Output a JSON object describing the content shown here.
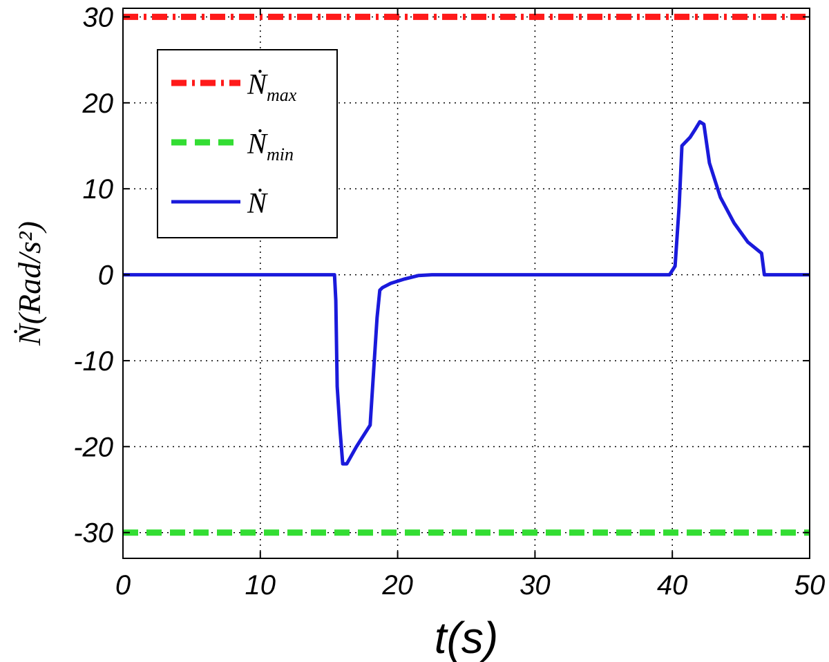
{
  "chart_data": {
    "type": "line",
    "xlabel": "t(s)",
    "ylabel": "Ṅ(Rad/s²)",
    "xlim": [
      0,
      50
    ],
    "ylim": [
      -33,
      31
    ],
    "x_ticks": [
      "0",
      "10",
      "20",
      "30",
      "40",
      "50"
    ],
    "y_ticks": [
      "30",
      "20",
      "10",
      "0",
      "-10",
      "-20",
      "-30"
    ],
    "grid": true,
    "legend_position": "top-left",
    "series": [
      {
        "name": "Ṅmax",
        "legend_base": "Ṅ",
        "legend_sub": "max",
        "color": "#ff1a1a",
        "style": "dash-dot",
        "x": [
          0,
          50
        ],
        "y": [
          30,
          30
        ]
      },
      {
        "name": "Ṅmin",
        "legend_base": "Ṅ",
        "legend_sub": "min",
        "color": "#33dd33",
        "style": "dashed",
        "x": [
          0,
          50
        ],
        "y": [
          -30,
          -30
        ]
      },
      {
        "name": "Ṅ",
        "legend_base": "Ṅ",
        "legend_sub": "",
        "color": "#1a1adb",
        "style": "solid",
        "x": [
          0,
          10,
          15,
          15.4,
          15.5,
          15.6,
          15.8,
          16,
          16.3,
          17,
          18,
          18.3,
          18.5,
          18.7,
          18.9,
          19.5,
          20.5,
          21.5,
          22.5,
          30,
          35,
          39.8,
          40.2,
          40.5,
          40.7,
          41,
          41.3,
          41.7,
          42,
          42.3,
          42.7,
          43.5,
          44.5,
          45.5,
          46.5,
          46.7,
          47,
          50
        ],
        "y": [
          0,
          0,
          0,
          0,
          -3,
          -13,
          -18,
          -22,
          -22,
          -20,
          -17.5,
          -10,
          -5,
          -1.8,
          -1.5,
          -1,
          -0.5,
          -0.1,
          0,
          0,
          0,
          0,
          1,
          8,
          15,
          15.5,
          16,
          17,
          17.8,
          17.5,
          13,
          9,
          6,
          3.8,
          2.5,
          0,
          0,
          0
        ]
      }
    ]
  }
}
